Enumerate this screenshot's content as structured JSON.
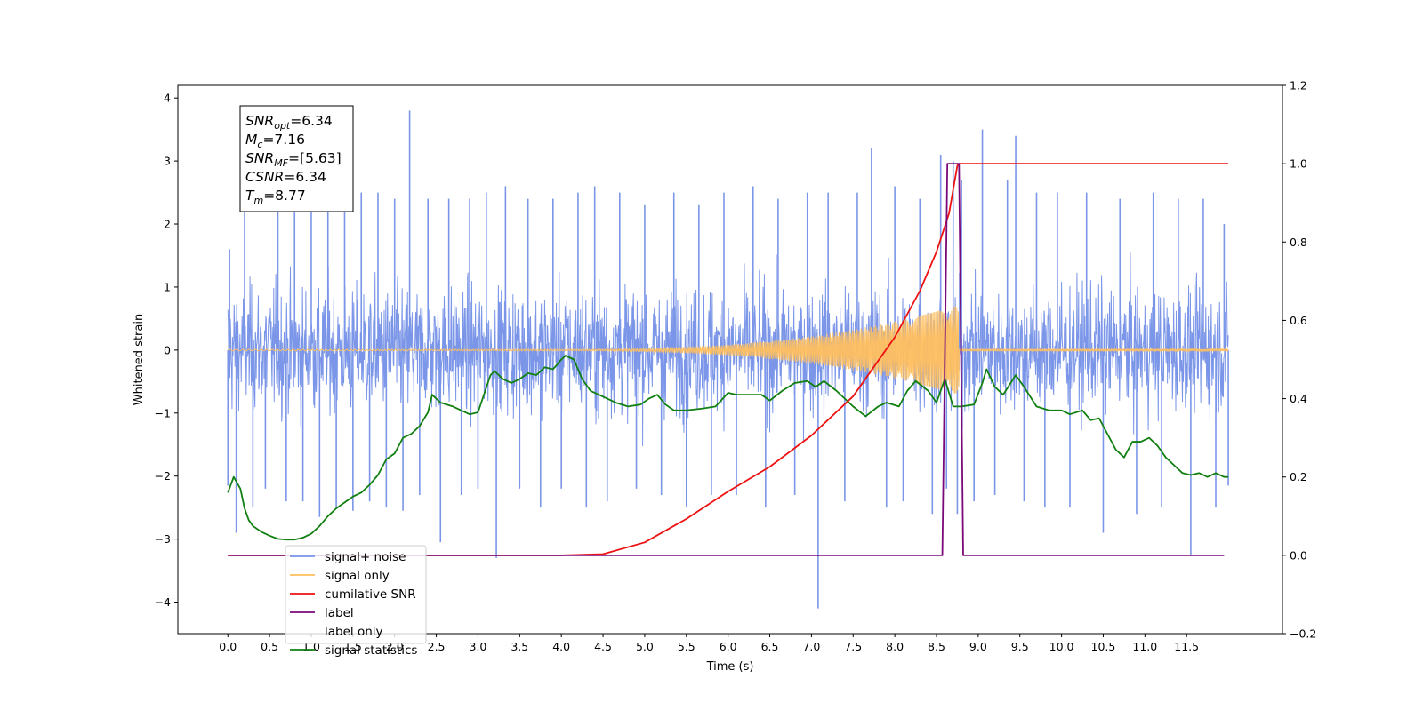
{
  "chart_data": {
    "type": "line",
    "title": "",
    "xlabel": "Time (s)",
    "ylabel": "Whitened strain",
    "xlim": [
      -0.6,
      12.65
    ],
    "ylim": [
      -4.5,
      4.2
    ],
    "y2lim": [
      -0.2,
      1.2
    ],
    "x_ticks": [
      "0.0",
      "0.5",
      "1.0",
      "1.5",
      "2.0",
      "2.5",
      "3.0",
      "3.5",
      "4.0",
      "4.5",
      "5.0",
      "5.5",
      "6.0",
      "6.5",
      "7.0",
      "7.5",
      "8.0",
      "8.5",
      "9.0",
      "9.5",
      "10.0",
      "10.5",
      "11.0",
      "11.5"
    ],
    "y_ticks": [
      "4",
      "3",
      "2",
      "1",
      "0",
      "−1",
      "−2",
      "−3",
      "−4"
    ],
    "y2_ticks": [
      "1.2",
      "1.0",
      "0.8",
      "0.6",
      "0.4",
      "0.2",
      "0.0",
      "−0.2"
    ],
    "grid": false,
    "legend_position": "lower-left",
    "annotation_box": [
      {
        "base": "SNR",
        "sub": "opt",
        "value": "=6.34"
      },
      {
        "base": "M",
        "sub": "c",
        "value": "=7.16"
      },
      {
        "base": "SNR",
        "sub": "MF",
        "value": "=[5.63]"
      },
      {
        "base": "CSNR",
        "sub": "",
        "value": "=6.34"
      },
      {
        "base": "T",
        "sub": "m",
        "value": "=8.77"
      }
    ],
    "series": [
      {
        "name": "signal+ noise",
        "axis": "left",
        "color": "#7b96e8",
        "noise": {
          "x_start": 0.0,
          "x_end": 12.0,
          "band": [
            -1.7,
            1.7
          ],
          "peaks": [
            [
              0.0,
              -2.15
            ],
            [
              0.02,
              1.6
            ],
            [
              0.1,
              -2.9
            ],
            [
              0.2,
              2.55
            ],
            [
              0.3,
              -2.5
            ],
            [
              0.45,
              -2.2
            ],
            [
              0.6,
              2.3
            ],
            [
              0.7,
              -2.4
            ],
            [
              0.8,
              2.3
            ],
            [
              0.9,
              -2.4
            ],
            [
              1.0,
              2.4
            ],
            [
              1.1,
              -2.65
            ],
            [
              1.2,
              2.4
            ],
            [
              1.3,
              -2.5
            ],
            [
              1.4,
              2.3
            ],
            [
              1.5,
              -2.55
            ],
            [
              1.6,
              2.5
            ],
            [
              1.7,
              -2.4
            ],
            [
              1.8,
              2.5
            ],
            [
              1.9,
              -2.5
            ],
            [
              2.0,
              2.4
            ],
            [
              2.1,
              -2.55
            ],
            [
              2.18,
              3.8
            ],
            [
              2.3,
              -2.3
            ],
            [
              2.4,
              2.4
            ],
            [
              2.55,
              -3.05
            ],
            [
              2.65,
              2.4
            ],
            [
              2.8,
              -2.3
            ],
            [
              2.9,
              2.4
            ],
            [
              3.0,
              -2.2
            ],
            [
              3.1,
              2.5
            ],
            [
              3.22,
              -3.3
            ],
            [
              3.33,
              2.6
            ],
            [
              3.5,
              -2.2
            ],
            [
              3.6,
              2.4
            ],
            [
              3.75,
              -2.5
            ],
            [
              3.9,
              2.4
            ],
            [
              4.0,
              -2.2
            ],
            [
              4.2,
              2.5
            ],
            [
              4.3,
              -2.5
            ],
            [
              4.4,
              2.6
            ],
            [
              4.55,
              -2.4
            ],
            [
              4.7,
              2.5
            ],
            [
              4.9,
              -2.2
            ],
            [
              5.0,
              2.3
            ],
            [
              5.2,
              -2.3
            ],
            [
              5.35,
              2.5
            ],
            [
              5.5,
              -2.5
            ],
            [
              5.65,
              2.3
            ],
            [
              5.8,
              -2.3
            ],
            [
              5.95,
              2.5
            ],
            [
              6.1,
              -2.3
            ],
            [
              6.3,
              2.6
            ],
            [
              6.45,
              -2.5
            ],
            [
              6.6,
              2.4
            ],
            [
              6.8,
              -2.3
            ],
            [
              6.95,
              2.5
            ],
            [
              7.08,
              -4.1
            ],
            [
              7.2,
              2.5
            ],
            [
              7.4,
              -2.4
            ],
            [
              7.55,
              2.5
            ],
            [
              7.72,
              3.2
            ],
            [
              7.9,
              -2.5
            ],
            [
              8.0,
              2.6
            ],
            [
              8.1,
              -2.4
            ],
            [
              8.3,
              2.4
            ],
            [
              8.45,
              -2.6
            ],
            [
              8.55,
              3.1
            ],
            [
              8.62,
              -2.2
            ],
            [
              8.7,
              3.0
            ],
            [
              8.75,
              -2.6
            ],
            [
              8.8,
              2.7
            ],
            [
              8.95,
              -2.4
            ],
            [
              9.05,
              3.5
            ],
            [
              9.2,
              -2.3
            ],
            [
              9.35,
              2.7
            ],
            [
              9.45,
              3.4
            ],
            [
              9.55,
              -2.4
            ],
            [
              9.7,
              2.5
            ],
            [
              9.8,
              -2.5
            ],
            [
              9.95,
              2.5
            ],
            [
              10.1,
              -2.5
            ],
            [
              10.3,
              2.5
            ],
            [
              10.5,
              -2.9
            ],
            [
              10.7,
              2.4
            ],
            [
              10.9,
              -2.6
            ],
            [
              11.1,
              2.5
            ],
            [
              11.2,
              -2.5
            ],
            [
              11.4,
              2.4
            ],
            [
              11.55,
              -3.25
            ],
            [
              11.7,
              2.4
            ],
            [
              11.85,
              -2.5
            ],
            [
              11.95,
              2.0
            ],
            [
              12.0,
              -2.15
            ]
          ]
        }
      },
      {
        "name": "signal only",
        "axis": "left",
        "color": "#ffbf5f",
        "chirp": {
          "start": 0.0,
          "growth_start": 4.0,
          "peak": 8.77,
          "end": 12.0,
          "peak_amplitude": 0.7
        }
      },
      {
        "name": "cumilative SNR",
        "axis": "right",
        "color": "#ee1111",
        "points": [
          [
            0.0,
            0.0
          ],
          [
            4.0,
            0.0
          ],
          [
            4.5,
            0.003
          ],
          [
            5.0,
            0.033
          ],
          [
            5.5,
            0.093
          ],
          [
            6.0,
            0.163
          ],
          [
            6.5,
            0.226
          ],
          [
            7.0,
            0.306
          ],
          [
            7.5,
            0.406
          ],
          [
            8.0,
            0.557
          ],
          [
            8.3,
            0.675
          ],
          [
            8.5,
            0.775
          ],
          [
            8.65,
            0.873
          ],
          [
            8.75,
            0.995
          ],
          [
            8.77,
            1.0
          ],
          [
            12.0,
            1.0
          ]
        ]
      },
      {
        "name": "label",
        "axis": "right",
        "color": "#7a0a7a",
        "points": [
          [
            0.0,
            0.0
          ],
          [
            8.57,
            0.0
          ],
          [
            8.63,
            1.0
          ],
          [
            8.77,
            1.0
          ],
          [
            8.82,
            0.0
          ],
          [
            11.95,
            0.0
          ]
        ]
      },
      {
        "name": "label only",
        "axis": "right",
        "color": "#ffffff",
        "hidden": true
      },
      {
        "name": "signal statistics",
        "axis": "right",
        "color": "#118011",
        "points": [
          [
            0.0,
            0.16
          ],
          [
            0.07,
            0.2
          ],
          [
            0.15,
            0.17
          ],
          [
            0.2,
            0.12
          ],
          [
            0.25,
            0.09
          ],
          [
            0.3,
            0.075
          ],
          [
            0.4,
            0.06
          ],
          [
            0.5,
            0.05
          ],
          [
            0.6,
            0.042
          ],
          [
            0.7,
            0.04
          ],
          [
            0.8,
            0.04
          ],
          [
            0.9,
            0.045
          ],
          [
            1.0,
            0.055
          ],
          [
            1.1,
            0.075
          ],
          [
            1.2,
            0.1
          ],
          [
            1.3,
            0.12
          ],
          [
            1.4,
            0.135
          ],
          [
            1.5,
            0.15
          ],
          [
            1.6,
            0.16
          ],
          [
            1.7,
            0.18
          ],
          [
            1.8,
            0.205
          ],
          [
            1.9,
            0.245
          ],
          [
            2.0,
            0.26
          ],
          [
            2.1,
            0.3
          ],
          [
            2.2,
            0.31
          ],
          [
            2.3,
            0.33
          ],
          [
            2.4,
            0.365
          ],
          [
            2.45,
            0.41
          ],
          [
            2.55,
            0.39
          ],
          [
            2.7,
            0.38
          ],
          [
            2.9,
            0.36
          ],
          [
            3.0,
            0.365
          ],
          [
            3.15,
            0.46
          ],
          [
            3.2,
            0.47
          ],
          [
            3.3,
            0.45
          ],
          [
            3.4,
            0.44
          ],
          [
            3.5,
            0.45
          ],
          [
            3.6,
            0.465
          ],
          [
            3.7,
            0.46
          ],
          [
            3.8,
            0.48
          ],
          [
            3.9,
            0.475
          ],
          [
            4.0,
            0.5
          ],
          [
            4.05,
            0.51
          ],
          [
            4.15,
            0.5
          ],
          [
            4.25,
            0.45
          ],
          [
            4.35,
            0.42
          ],
          [
            4.5,
            0.405
          ],
          [
            4.65,
            0.39
          ],
          [
            4.8,
            0.38
          ],
          [
            4.95,
            0.385
          ],
          [
            5.05,
            0.4
          ],
          [
            5.15,
            0.41
          ],
          [
            5.25,
            0.385
          ],
          [
            5.35,
            0.37
          ],
          [
            5.5,
            0.37
          ],
          [
            5.7,
            0.375
          ],
          [
            5.85,
            0.38
          ],
          [
            6.0,
            0.415
          ],
          [
            6.1,
            0.41
          ],
          [
            6.25,
            0.41
          ],
          [
            6.4,
            0.41
          ],
          [
            6.5,
            0.395
          ],
          [
            6.65,
            0.42
          ],
          [
            6.8,
            0.44
          ],
          [
            6.95,
            0.445
          ],
          [
            7.05,
            0.43
          ],
          [
            7.15,
            0.445
          ],
          [
            7.3,
            0.42
          ],
          [
            7.5,
            0.38
          ],
          [
            7.65,
            0.355
          ],
          [
            7.8,
            0.38
          ],
          [
            7.9,
            0.39
          ],
          [
            8.05,
            0.38
          ],
          [
            8.15,
            0.42
          ],
          [
            8.25,
            0.445
          ],
          [
            8.4,
            0.42
          ],
          [
            8.5,
            0.39
          ],
          [
            8.6,
            0.45
          ],
          [
            8.7,
            0.38
          ],
          [
            8.8,
            0.38
          ],
          [
            8.95,
            0.385
          ],
          [
            9.05,
            0.44
          ],
          [
            9.1,
            0.475
          ],
          [
            9.2,
            0.43
          ],
          [
            9.3,
            0.41
          ],
          [
            9.45,
            0.46
          ],
          [
            9.55,
            0.43
          ],
          [
            9.7,
            0.38
          ],
          [
            9.85,
            0.37
          ],
          [
            10.0,
            0.37
          ],
          [
            10.1,
            0.36
          ],
          [
            10.25,
            0.37
          ],
          [
            10.35,
            0.345
          ],
          [
            10.45,
            0.35
          ],
          [
            10.55,
            0.31
          ],
          [
            10.65,
            0.27
          ],
          [
            10.75,
            0.25
          ],
          [
            10.85,
            0.29
          ],
          [
            10.95,
            0.29
          ],
          [
            11.05,
            0.3
          ],
          [
            11.15,
            0.28
          ],
          [
            11.25,
            0.25
          ],
          [
            11.35,
            0.23
          ],
          [
            11.45,
            0.21
          ],
          [
            11.55,
            0.205
          ],
          [
            11.65,
            0.21
          ],
          [
            11.75,
            0.2
          ],
          [
            11.85,
            0.21
          ],
          [
            11.95,
            0.2
          ],
          [
            12.0,
            0.2
          ]
        ]
      }
    ]
  }
}
